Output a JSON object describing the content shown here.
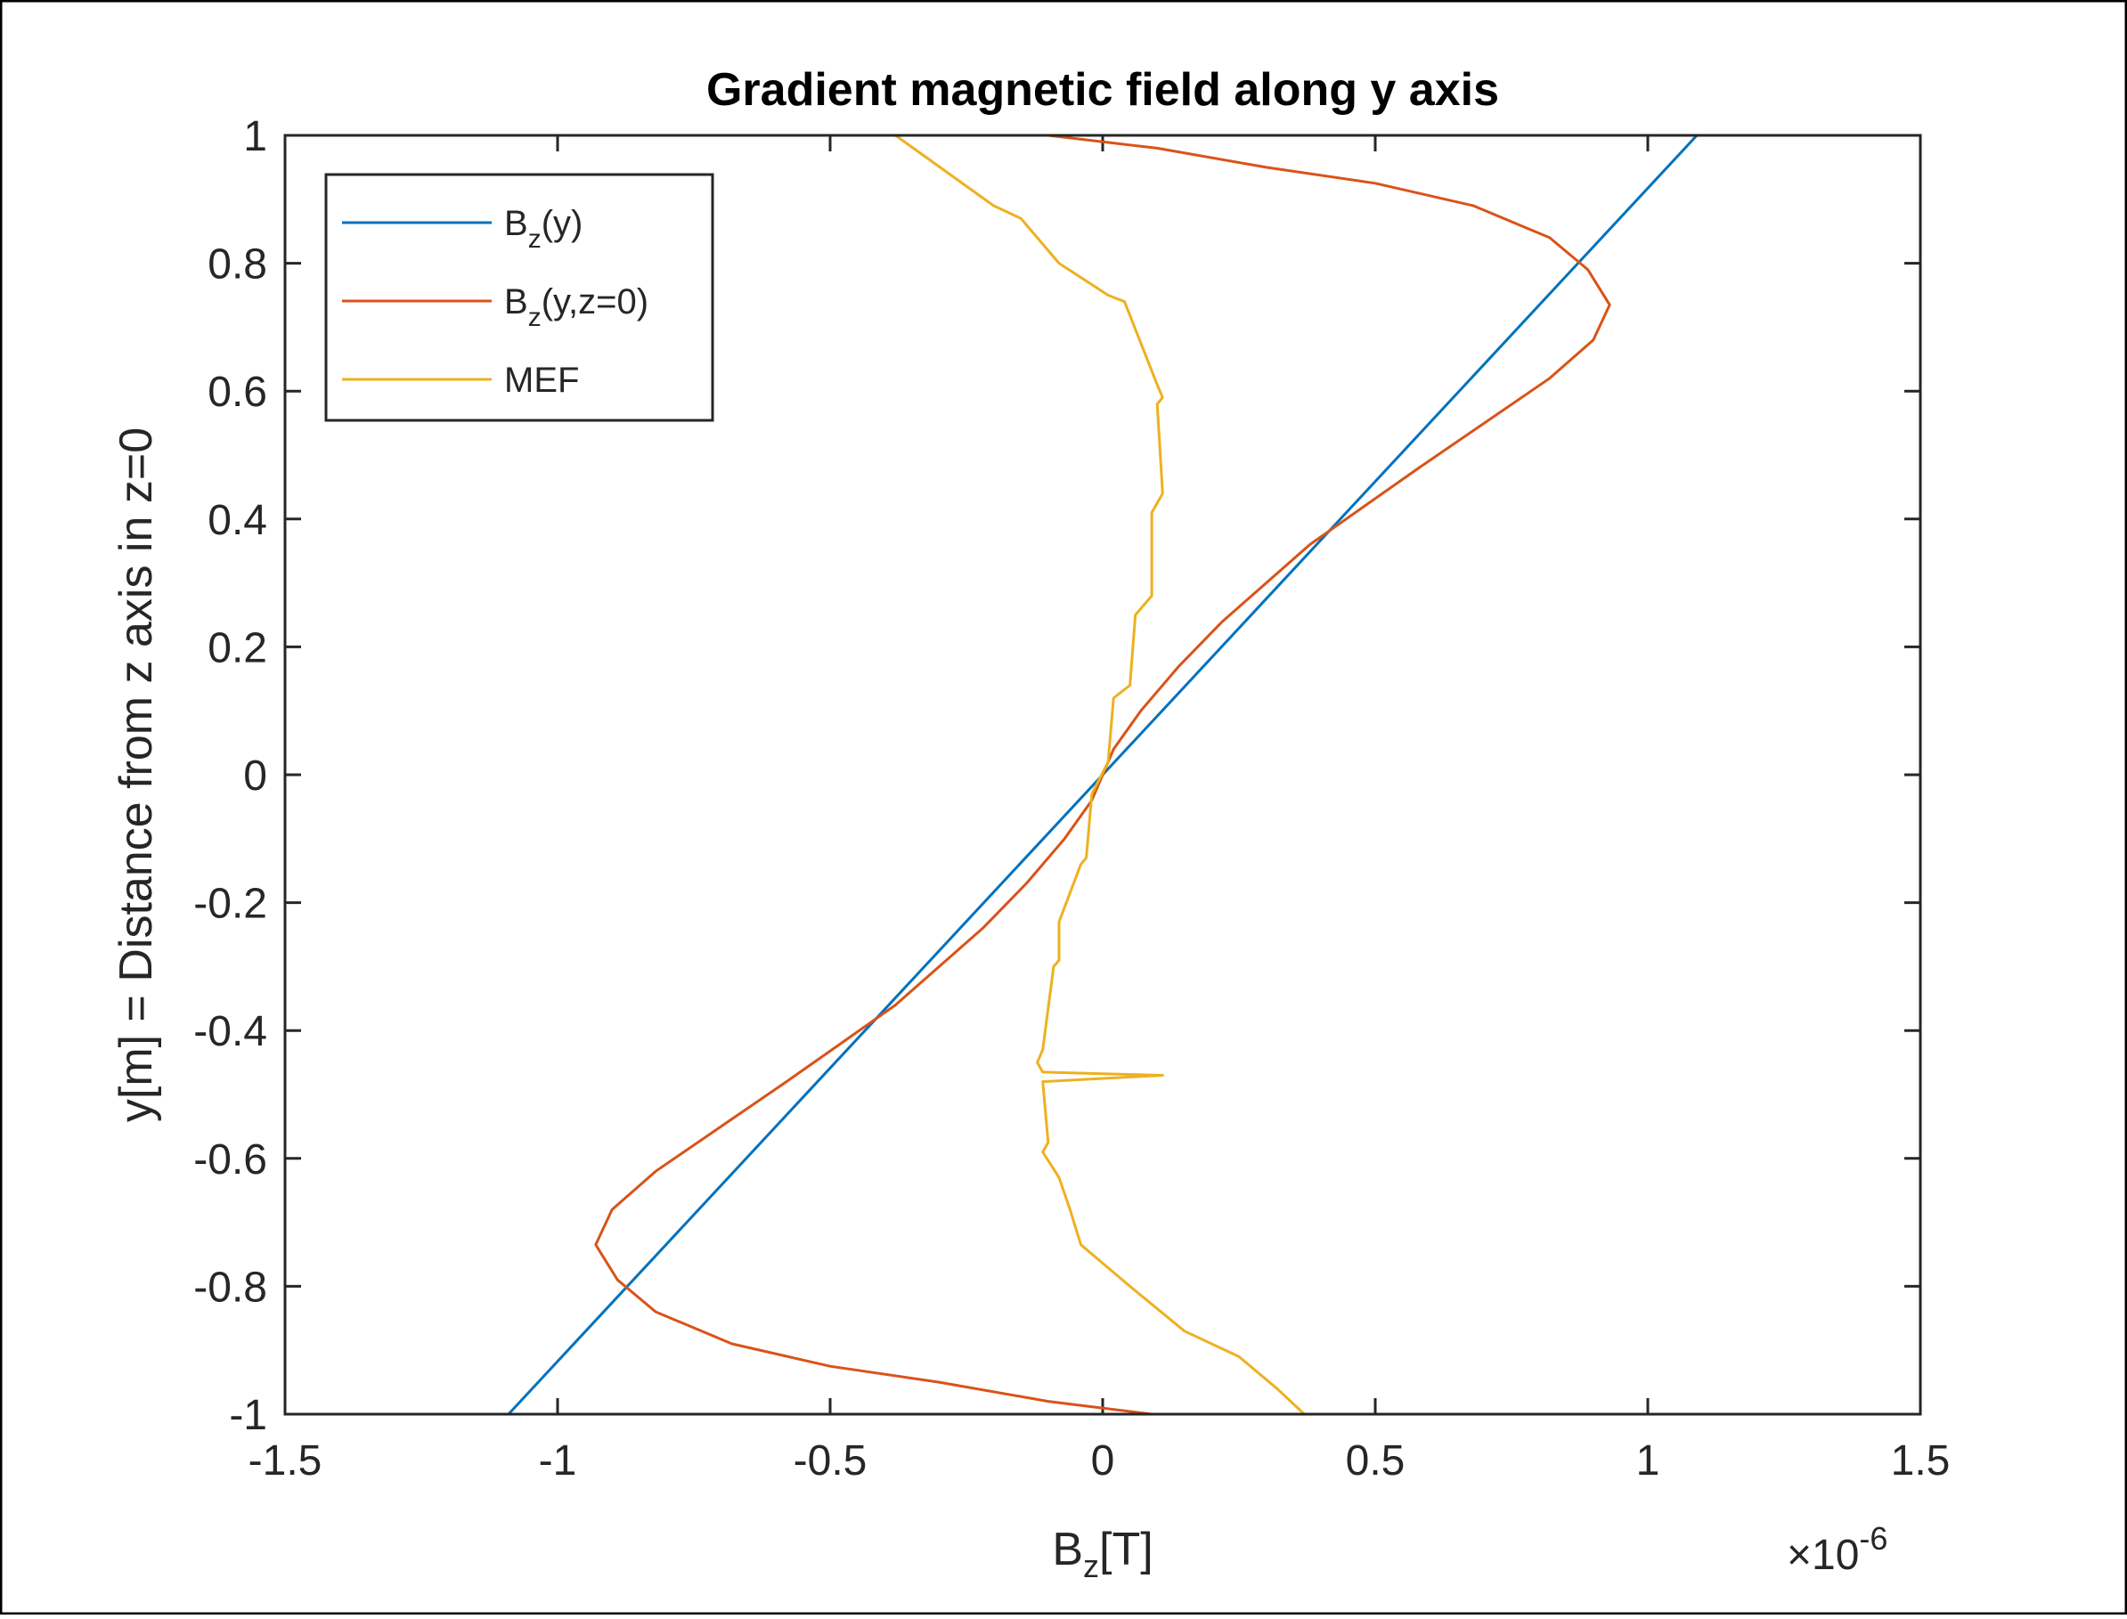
{
  "chart_data": {
    "type": "line",
    "title": "Gradient magnetic field along y axis",
    "xlabel": {
      "base": "B",
      "sub": "z",
      "rest": "[T]"
    },
    "ylabel": "y[m] = Distance from z axis in z=0",
    "x_exponent": {
      "prefix": "×10",
      "power": "-6"
    },
    "xlim": [
      -1.5,
      1.5
    ],
    "ylim": [
      -1,
      1
    ],
    "x_ticks": [
      -1.5,
      -1,
      -0.5,
      0,
      0.5,
      1,
      1.5
    ],
    "x_tick_labels": [
      "-1.5",
      "-1",
      "-0.5",
      "0",
      "0.5",
      "1",
      "1.5"
    ],
    "y_ticks": [
      -1,
      -0.8,
      -0.6,
      -0.4,
      -0.2,
      0,
      0.2,
      0.4,
      0.6,
      0.8,
      1
    ],
    "y_tick_labels": [
      "-1",
      "-0.8",
      "-0.6",
      "-0.4",
      "-0.2",
      "0",
      "0.2",
      "0.4",
      "0.6",
      "0.8",
      "1"
    ],
    "grid": false,
    "legend_position": "top-left",
    "series": [
      {
        "name": "B_z(y)",
        "label_base": "B",
        "label_sub": "z",
        "label_rest": "(y)",
        "color": "#0072BD",
        "points": [
          [
            -1.09,
            -1
          ],
          [
            1.09,
            1
          ]
        ]
      },
      {
        "name": "B_z(y,z=0)",
        "label_base": "B",
        "label_sub": "z",
        "label_rest": "(y,z=0)",
        "color": "#D95319",
        "points": [
          [
            0.09,
            -1
          ],
          [
            -0.1,
            -0.98
          ],
          [
            -0.3,
            -0.95
          ],
          [
            -0.5,
            -0.925
          ],
          [
            -0.68,
            -0.89
          ],
          [
            -0.82,
            -0.84
          ],
          [
            -0.89,
            -0.79
          ],
          [
            -0.93,
            -0.735
          ],
          [
            -0.9,
            -0.68
          ],
          [
            -0.82,
            -0.62
          ],
          [
            -0.7,
            -0.55
          ],
          [
            -0.58,
            -0.48
          ],
          [
            -0.48,
            -0.42
          ],
          [
            -0.38,
            -0.36
          ],
          [
            -0.3,
            -0.3
          ],
          [
            -0.22,
            -0.24
          ],
          [
            -0.14,
            -0.17
          ],
          [
            -0.07,
            -0.1
          ],
          [
            -0.02,
            -0.04
          ],
          [
            0,
            0
          ],
          [
            0.02,
            0.04
          ],
          [
            0.07,
            0.1
          ],
          [
            0.14,
            0.17
          ],
          [
            0.22,
            0.24
          ],
          [
            0.3,
            0.3
          ],
          [
            0.38,
            0.36
          ],
          [
            0.48,
            0.42
          ],
          [
            0.58,
            0.48
          ],
          [
            0.7,
            0.55
          ],
          [
            0.82,
            0.62
          ],
          [
            0.9,
            0.68
          ],
          [
            0.93,
            0.735
          ],
          [
            0.89,
            0.79
          ],
          [
            0.82,
            0.84
          ],
          [
            0.68,
            0.89
          ],
          [
            0.5,
            0.925
          ],
          [
            0.3,
            0.95
          ],
          [
            0.1,
            0.98
          ],
          [
            -0.1,
            1
          ]
        ]
      },
      {
        "name": "MEF",
        "label_base": "MEF",
        "label_sub": "",
        "label_rest": "",
        "color": "#EDB120",
        "points": [
          [
            0.37,
            -1
          ],
          [
            0.32,
            -0.96
          ],
          [
            0.25,
            -0.91
          ],
          [
            0.15,
            -0.87
          ],
          [
            0.05,
            -0.8
          ],
          [
            -0.04,
            -0.735
          ],
          [
            -0.06,
            -0.68
          ],
          [
            -0.08,
            -0.63
          ],
          [
            -0.11,
            -0.59
          ],
          [
            -0.1,
            -0.575
          ],
          [
            -0.11,
            -0.48
          ],
          [
            0.11,
            -0.47
          ],
          [
            -0.11,
            -0.465
          ],
          [
            -0.12,
            -0.45
          ],
          [
            -0.11,
            -0.43
          ],
          [
            -0.09,
            -0.3
          ],
          [
            -0.08,
            -0.29
          ],
          [
            -0.08,
            -0.23
          ],
          [
            -0.04,
            -0.14
          ],
          [
            -0.03,
            -0.13
          ],
          [
            -0.02,
            -0.03
          ],
          [
            0.01,
            0.02
          ],
          [
            0.02,
            0.12
          ],
          [
            0.05,
            0.14
          ],
          [
            0.06,
            0.25
          ],
          [
            0.09,
            0.28
          ],
          [
            0.09,
            0.41
          ],
          [
            0.11,
            0.44
          ],
          [
            0.1,
            0.58
          ],
          [
            0.11,
            0.59
          ],
          [
            0.1,
            0.61
          ],
          [
            0.04,
            0.74
          ],
          [
            0.01,
            0.75
          ],
          [
            -0.08,
            0.8
          ],
          [
            -0.15,
            0.87
          ],
          [
            -0.2,
            0.89
          ],
          [
            -0.38,
            1
          ]
        ]
      }
    ]
  }
}
